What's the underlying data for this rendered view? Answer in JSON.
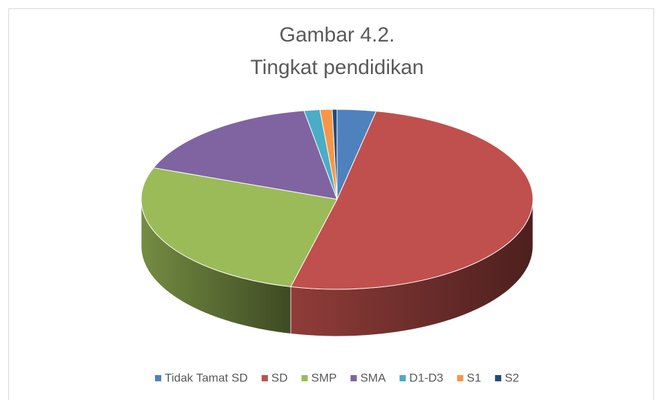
{
  "chart_data": {
    "type": "pie",
    "title": [
      "Gambar 4.2.",
      "Tingkat pendidikan"
    ],
    "categories": [
      "Tidak Tamat SD",
      "SD",
      "SMP",
      "SMA",
      "D1-D3",
      "S1",
      "S2"
    ],
    "values": [
      3.2,
      50.6,
      26.9,
      16.6,
      1.3,
      1.0,
      0.4
    ],
    "colors": [
      "#4f81bd",
      "#c0504d",
      "#9bbb59",
      "#8064a2",
      "#4bacc6",
      "#f79646",
      "#1f497d"
    ],
    "legend": "bottom",
    "style": "3d"
  }
}
